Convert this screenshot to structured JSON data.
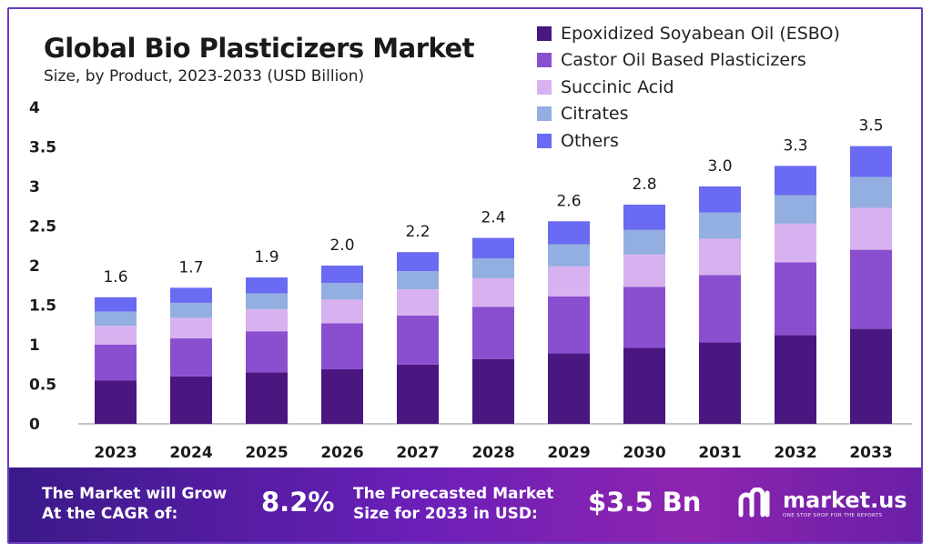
{
  "header": {
    "title": "Global Bio Plasticizers Market",
    "subtitle": "Size, by Product, 2023-2033 (USD Billion)"
  },
  "chart_data": {
    "type": "bar",
    "stacked": true,
    "categories": [
      "2023",
      "2024",
      "2025",
      "2026",
      "2027",
      "2028",
      "2029",
      "2030",
      "2031",
      "2032",
      "2033"
    ],
    "totals": [
      "1.6",
      "1.7",
      "1.9",
      "2.0",
      "2.2",
      "2.4",
      "2.6",
      "2.8",
      "3.0",
      "3.3",
      "3.5"
    ],
    "series": [
      {
        "name": "Epoxidized Soyabean Oil (ESBO)",
        "color": "#4a167f",
        "values": [
          0.55,
          0.6,
          0.65,
          0.69,
          0.75,
          0.82,
          0.89,
          0.96,
          1.03,
          1.12,
          1.2
        ]
      },
      {
        "name": "Castor Oil Based Plasticizers",
        "color": "#8a4fcf",
        "values": [
          0.45,
          0.48,
          0.52,
          0.58,
          0.62,
          0.66,
          0.72,
          0.77,
          0.85,
          0.92,
          1.0
        ]
      },
      {
        "name": "Succinic Acid",
        "color": "#d8b2f0",
        "values": [
          0.24,
          0.26,
          0.28,
          0.3,
          0.33,
          0.36,
          0.38,
          0.41,
          0.46,
          0.49,
          0.53
        ]
      },
      {
        "name": "Citrates",
        "color": "#93aee0",
        "values": [
          0.18,
          0.19,
          0.2,
          0.21,
          0.23,
          0.25,
          0.28,
          0.31,
          0.33,
          0.36,
          0.39
        ]
      },
      {
        "name": "Others",
        "color": "#6a6af2",
        "values": [
          0.18,
          0.19,
          0.2,
          0.22,
          0.24,
          0.26,
          0.29,
          0.32,
          0.33,
          0.37,
          0.39
        ]
      }
    ],
    "ylim": [
      0,
      4
    ],
    "yticks": [
      "0",
      "0.5",
      "1",
      "1.5",
      "2",
      "2.5",
      "3",
      "3.5",
      "4"
    ],
    "legend": "top-right",
    "grid": false
  },
  "banner": {
    "cagr_label_line1": "The Market will Grow",
    "cagr_label_line2": "At the CAGR of:",
    "cagr_value": "8.2%",
    "forecast_label_line1": "The Forecasted Market",
    "forecast_label_line2": "Size for 2033 in USD:",
    "forecast_value": "$3.5 Bn",
    "logo_name": "market.us",
    "logo_tagline": "ONE STOP SHOP FOR THE REPORTS"
  },
  "icons": {
    "logo": "market-us-logo-icon"
  }
}
